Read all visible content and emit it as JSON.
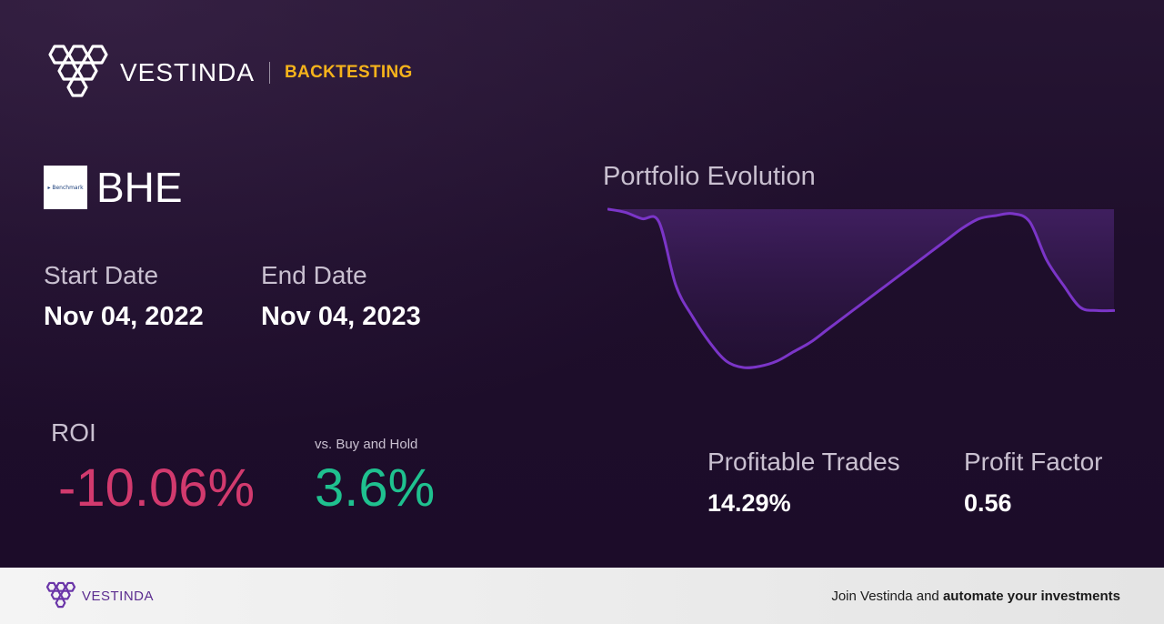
{
  "header": {
    "brand": "VESTINDA",
    "section": "BACKTESTING",
    "logo_icon": "hexagon-cluster-logo"
  },
  "ticker": {
    "symbol": "BHE",
    "logo_text": "▸ Benchmark"
  },
  "dates": {
    "start_label": "Start Date",
    "start_value": "Nov 04, 2022",
    "end_label": "End Date",
    "end_value": "Nov 04, 2023"
  },
  "roi": {
    "label": "ROI",
    "value": "-10.06%",
    "vs_label": "vs. Buy and Hold",
    "vs_value": "3.6%"
  },
  "chart": {
    "title": "Portfolio Evolution"
  },
  "chart_data": {
    "type": "area",
    "x": [
      0,
      1,
      2,
      3,
      4,
      5,
      6,
      7,
      8,
      9,
      10,
      11,
      12,
      13,
      14,
      15,
      16,
      17,
      18,
      19,
      20,
      21,
      22,
      23,
      24,
      25,
      26,
      27,
      28,
      29,
      30
    ],
    "values": [
      100,
      99.5,
      98.5,
      98,
      88,
      83,
      79,
      76,
      75,
      75.2,
      76,
      77.5,
      79,
      81,
      83,
      85,
      87,
      89,
      91,
      93,
      95,
      97,
      98.5,
      99,
      99.3,
      98,
      92,
      88,
      84.5,
      84,
      84
    ],
    "series_color": "#7b35c8",
    "fill_color": "#4a2470",
    "grid": false,
    "axes_visible": false
  },
  "metrics": {
    "profitable_label": "Profitable Trades",
    "profitable_value": "14.29%",
    "factor_label": "Profit Factor",
    "factor_value": "0.56"
  },
  "footer": {
    "brand": "VESTINDA",
    "cta_prefix": "Join Vestinda and ",
    "cta_bold": "automate your investments"
  },
  "colors": {
    "background": "#1f0f2c",
    "accent_yellow": "#f5b31b",
    "roi_negative": "#d23a6e",
    "roi_positive": "#1fc18f",
    "line_purple": "#7b35c8"
  }
}
